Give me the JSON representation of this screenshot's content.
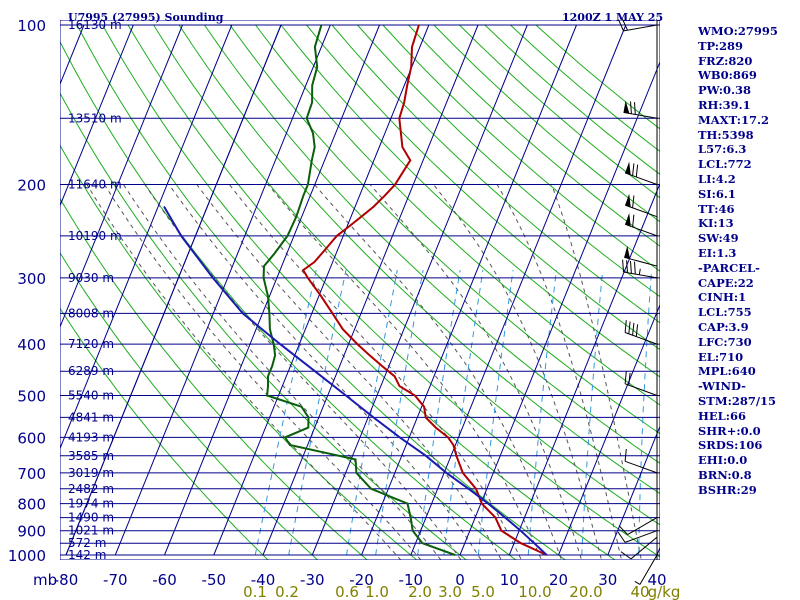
{
  "header": {
    "station": "U7995 (27995) Sounding",
    "time": "1200Z  1 MAY 25"
  },
  "chart_data": {
    "type": "line",
    "title": "U7995 (27995) Sounding",
    "subtitle": "1200Z  1 MAY 25",
    "xlabel": "mb",
    "x_units": "temperature (°C), skewed",
    "xlim": [
      -80,
      40
    ],
    "x_ticks": [
      "-80",
      "-70",
      "-60",
      "-50",
      "-40",
      "-30",
      "-20",
      "-10",
      "0",
      "10",
      "20",
      "30",
      "40"
    ],
    "mixing_ratio_labels": [
      "0.1",
      "0.2",
      "0.6",
      "1.0",
      "2.0",
      "3.0",
      "5.0",
      "10.0",
      "20.0",
      "40",
      "g/kg"
    ],
    "pressure_levels": [
      100,
      200,
      300,
      400,
      500,
      600,
      700,
      800,
      900,
      1000
    ],
    "height_labels": [
      {
        "p": 100,
        "label": "16130 m"
      },
      {
        "p": 150,
        "label": "13510 m"
      },
      {
        "p": 200,
        "label": "11640 m"
      },
      {
        "p": 250,
        "label": "10190 m"
      },
      {
        "p": 300,
        "label": "9030 m"
      },
      {
        "p": 350,
        "label": "8008 m"
      },
      {
        "p": 400,
        "label": "7120 m"
      },
      {
        "p": 450,
        "label": "6289 m"
      },
      {
        "p": 500,
        "label": "5540 m"
      },
      {
        "p": 550,
        "label": "4841 m"
      },
      {
        "p": 600,
        "label": "4193 m"
      },
      {
        "p": 650,
        "label": "3585 m"
      },
      {
        "p": 700,
        "label": "3019 m"
      },
      {
        "p": 750,
        "label": "2482 m"
      },
      {
        "p": 800,
        "label": "1974 m"
      },
      {
        "p": 850,
        "label": "1490 m"
      },
      {
        "p": 900,
        "label": "1021 m"
      },
      {
        "p": 950,
        "label": "572 m"
      },
      {
        "p": 1000,
        "label": "142 m"
      }
    ],
    "series": [
      {
        "color": "#b00000",
        "points": [
          [
            1000,
            17.6
          ],
          [
            950,
            11.4
          ],
          [
            900,
            6.4
          ],
          [
            850,
            4.1
          ],
          [
            800,
            0.2
          ],
          [
            750,
            -2.2
          ],
          [
            700,
            -6.2
          ],
          [
            650,
            -8.9
          ],
          [
            620,
            -10.4
          ],
          [
            600,
            -12.1
          ],
          [
            575,
            -15.4
          ],
          [
            550,
            -18.3
          ],
          [
            525,
            -19.5
          ],
          [
            500,
            -22.3
          ],
          [
            480,
            -26.2
          ],
          [
            460,
            -28.0
          ],
          [
            440,
            -31.4
          ],
          [
            420,
            -34.8
          ],
          [
            400,
            -38.2
          ],
          [
            375,
            -42.4
          ],
          [
            350,
            -45.8
          ],
          [
            325,
            -49.5
          ],
          [
            300,
            -53.7
          ],
          [
            290,
            -55.3
          ],
          [
            280,
            -53.7
          ],
          [
            270,
            -52.9
          ],
          [
            260,
            -52.1
          ],
          [
            250,
            -51.3
          ],
          [
            240,
            -49.6
          ],
          [
            230,
            -47.9
          ],
          [
            220,
            -46.2
          ],
          [
            210,
            -44.9
          ],
          [
            200,
            -43.7
          ],
          [
            180,
            -42.6
          ],
          [
            170,
            -45.3
          ],
          [
            150,
            -48.3
          ],
          [
            140,
            -48.6
          ],
          [
            130,
            -49.4
          ],
          [
            120,
            -50.1
          ],
          [
            110,
            -51.6
          ],
          [
            100,
            -52.0
          ]
        ]
      },
      {
        "color": "#0b5e0b",
        "points": [
          [
            1000,
            -1.0
          ],
          [
            950,
            -8.6
          ],
          [
            900,
            -11.6
          ],
          [
            850,
            -13.1
          ],
          [
            800,
            -14.9
          ],
          [
            750,
            -23.5
          ],
          [
            700,
            -27.8
          ],
          [
            660,
            -29.1
          ],
          [
            620,
            -43.6
          ],
          [
            600,
            -45.2
          ],
          [
            575,
            -41.3
          ],
          [
            550,
            -42.1
          ],
          [
            525,
            -44.4
          ],
          [
            500,
            -52.3
          ],
          [
            480,
            -52.9
          ],
          [
            460,
            -53.7
          ],
          [
            440,
            -53.7
          ],
          [
            420,
            -54.0
          ],
          [
            400,
            -55.2
          ],
          [
            375,
            -57.2
          ],
          [
            350,
            -58.6
          ],
          [
            325,
            -60.3
          ],
          [
            300,
            -62.7
          ],
          [
            285,
            -63.6
          ],
          [
            270,
            -62.5
          ],
          [
            250,
            -61.3
          ],
          [
            230,
            -61.1
          ],
          [
            210,
            -61.4
          ],
          [
            200,
            -61.4
          ],
          [
            180,
            -62.6
          ],
          [
            170,
            -63.1
          ],
          [
            160,
            -64.6
          ],
          [
            150,
            -67.1
          ],
          [
            140,
            -67.3
          ],
          [
            130,
            -68.7
          ],
          [
            120,
            -69.2
          ],
          [
            110,
            -71.3
          ],
          [
            100,
            -71.8
          ]
        ]
      },
      {
        "color": "#1b1baf",
        "points": [
          [
            1000,
            17.6
          ],
          [
            950,
            14.1
          ],
          [
            900,
            10.3
          ],
          [
            850,
            6.1
          ],
          [
            800,
            1.5
          ],
          [
            750,
            -3.7
          ],
          [
            700,
            -9.5
          ],
          [
            650,
            -15.1
          ],
          [
            600,
            -21.9
          ],
          [
            550,
            -28.9
          ],
          [
            500,
            -36.3
          ],
          [
            450,
            -44.6
          ],
          [
            400,
            -53.9
          ],
          [
            350,
            -64.0
          ],
          [
            300,
            -73.0
          ],
          [
            250,
            -82.9
          ],
          [
            220,
            -88.8
          ]
        ]
      }
    ],
    "wind_barbs": [
      {
        "p": 100,
        "dir": 260,
        "speed": 20
      },
      {
        "p": 150,
        "dir": 280,
        "speed": 70
      },
      {
        "p": 200,
        "dir": 290,
        "speed": 70
      },
      {
        "p": 230,
        "dir": 290,
        "speed": 60
      },
      {
        "p": 250,
        "dir": 290,
        "speed": 60
      },
      {
        "p": 285,
        "dir": 285,
        "speed": 50
      },
      {
        "p": 300,
        "dir": 280,
        "speed": 45
      },
      {
        "p": 400,
        "dir": 290,
        "speed": 40
      },
      {
        "p": 500,
        "dir": 290,
        "speed": 20
      },
      {
        "p": 700,
        "dir": 290,
        "speed": 10
      },
      {
        "p": 850,
        "dir": 240,
        "speed": 10
      },
      {
        "p": 900,
        "dir": 250,
        "speed": 10
      },
      {
        "p": 925,
        "dir": 230,
        "speed": 10
      },
      {
        "p": 1000,
        "dir": 210,
        "speed": 5
      }
    ],
    "grid": true,
    "colors": {
      "pressure_lines": "#00008b",
      "dry_adiabats": "#00aa00",
      "moist_adiabats": "#444444",
      "mixing_ratio": "#3399dd",
      "labels": "#00008b"
    }
  },
  "stats": [
    "WMO:27995",
    "TP:289",
    "FRZ:820",
    "WB0:869",
    "PW:0.38",
    "RH:39.1",
    "MAXT:17.2",
    "TH:5398",
    "L57:6.3",
    "LCL:772",
    "LI:4.2",
    "SI:6.1",
    "TT:46",
    "KI:13",
    "SW:49",
    "EI:1.3",
    "-PARCEL-",
    "CAPE:22",
    "CINH:1",
    "LCL:755",
    "CAP:3.9",
    "LFC:730",
    "EL:710",
    "MPL:640",
    "-WIND-",
    "STM:287/15",
    "HEL:66",
    "SHR+:0.0",
    "SRDS:106",
    "EHI:0.0",
    "BRN:0.8",
    "BSHR:29"
  ]
}
